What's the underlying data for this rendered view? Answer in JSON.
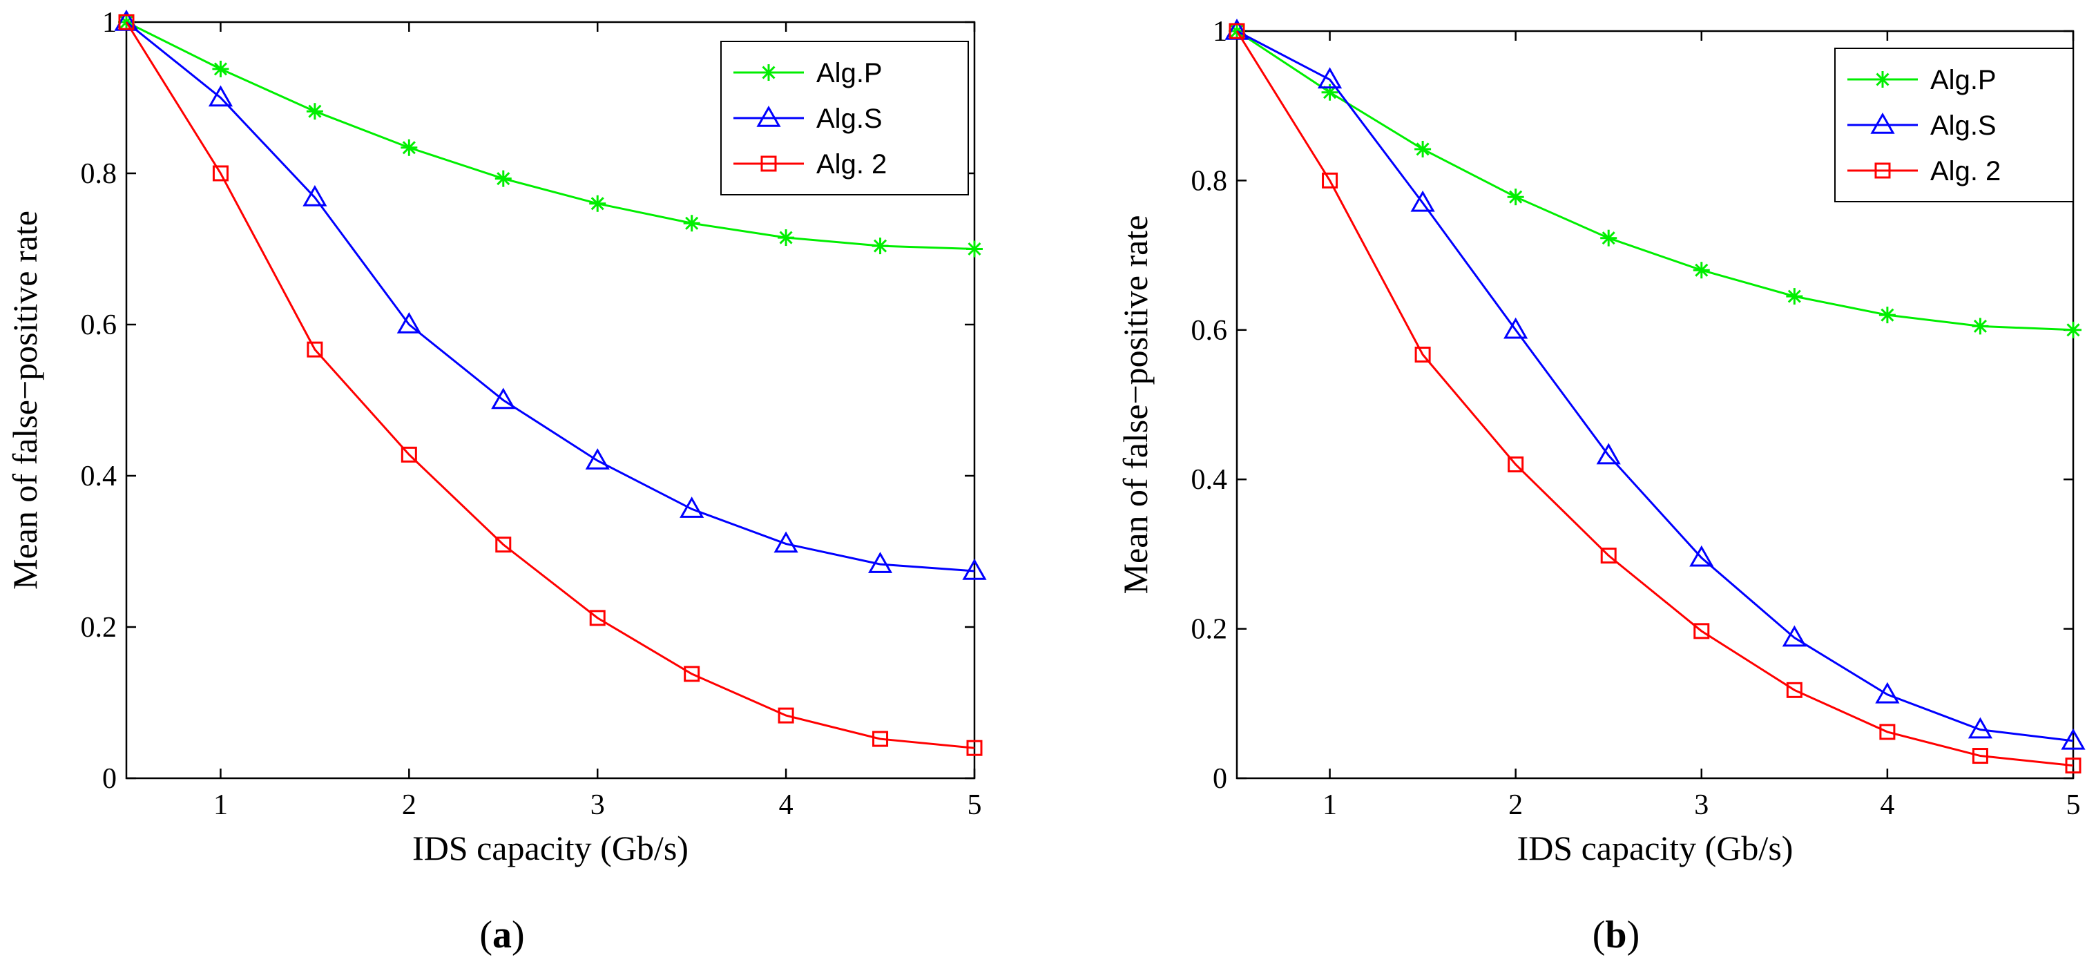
{
  "chart_data": [
    {
      "type": "line",
      "panel_label": "a",
      "caption_open": "(",
      "caption_close": ")",
      "xlabel": "IDS capacity (Gb/s)",
      "ylabel": "Mean of false−positive rate",
      "xlim": [
        0.5,
        5
      ],
      "ylim": [
        0,
        1
      ],
      "xticks": [
        1,
        2,
        3,
        4,
        5
      ],
      "yticks": [
        0,
        0.2,
        0.4,
        0.6,
        0.8,
        1
      ],
      "ytick_labels": [
        "0",
        "0.2",
        "0.4",
        "0.6",
        "0.8",
        "1"
      ],
      "legend_position": "top-right",
      "x": [
        0.5,
        1,
        1.5,
        2,
        2.5,
        3,
        3.5,
        4,
        4.5,
        5
      ],
      "series": [
        {
          "name": "Alg.P",
          "color": "#00ee00",
          "marker": "asterisk",
          "values": [
            1.0,
            0.938,
            0.882,
            0.834,
            0.793,
            0.76,
            0.734,
            0.715,
            0.704,
            0.7
          ]
        },
        {
          "name": "Alg.S",
          "color": "#0000ff",
          "marker": "triangle",
          "values": [
            1.0,
            0.9,
            0.768,
            0.6,
            0.5,
            0.42,
            0.356,
            0.31,
            0.283,
            0.274
          ]
        },
        {
          "name": "Alg. 2",
          "color": "#ff0000",
          "marker": "square",
          "values": [
            1.0,
            0.8,
            0.567,
            0.428,
            0.309,
            0.212,
            0.138,
            0.083,
            0.052,
            0.04
          ]
        }
      ]
    },
    {
      "type": "line",
      "panel_label": "b",
      "caption_open": "(",
      "caption_close": ")",
      "xlabel": "IDS capacity (Gb/s)",
      "ylabel": "Mean of false−positive rate",
      "xlim": [
        0.5,
        5
      ],
      "ylim": [
        0,
        1
      ],
      "xticks": [
        1,
        2,
        3,
        4,
        5
      ],
      "yticks": [
        0,
        0.2,
        0.4,
        0.6,
        0.8,
        1
      ],
      "ytick_labels": [
        "0",
        "0.2",
        "0.4",
        "0.6",
        "0.8",
        "1"
      ],
      "legend_position": "top-right",
      "x": [
        0.5,
        1,
        1.5,
        2,
        2.5,
        3,
        3.5,
        4,
        4.5,
        5
      ],
      "series": [
        {
          "name": "Alg.P",
          "color": "#00ee00",
          "marker": "asterisk",
          "values": [
            1.0,
            0.918,
            0.842,
            0.778,
            0.723,
            0.68,
            0.645,
            0.62,
            0.605,
            0.6
          ]
        },
        {
          "name": "Alg.S",
          "color": "#0000ff",
          "marker": "triangle",
          "values": [
            1.0,
            0.935,
            0.77,
            0.6,
            0.432,
            0.295,
            0.188,
            0.112,
            0.065,
            0.05
          ]
        },
        {
          "name": "Alg. 2",
          "color": "#ff0000",
          "marker": "square",
          "values": [
            1.0,
            0.8,
            0.567,
            0.42,
            0.298,
            0.197,
            0.118,
            0.062,
            0.03,
            0.017
          ]
        }
      ]
    }
  ]
}
